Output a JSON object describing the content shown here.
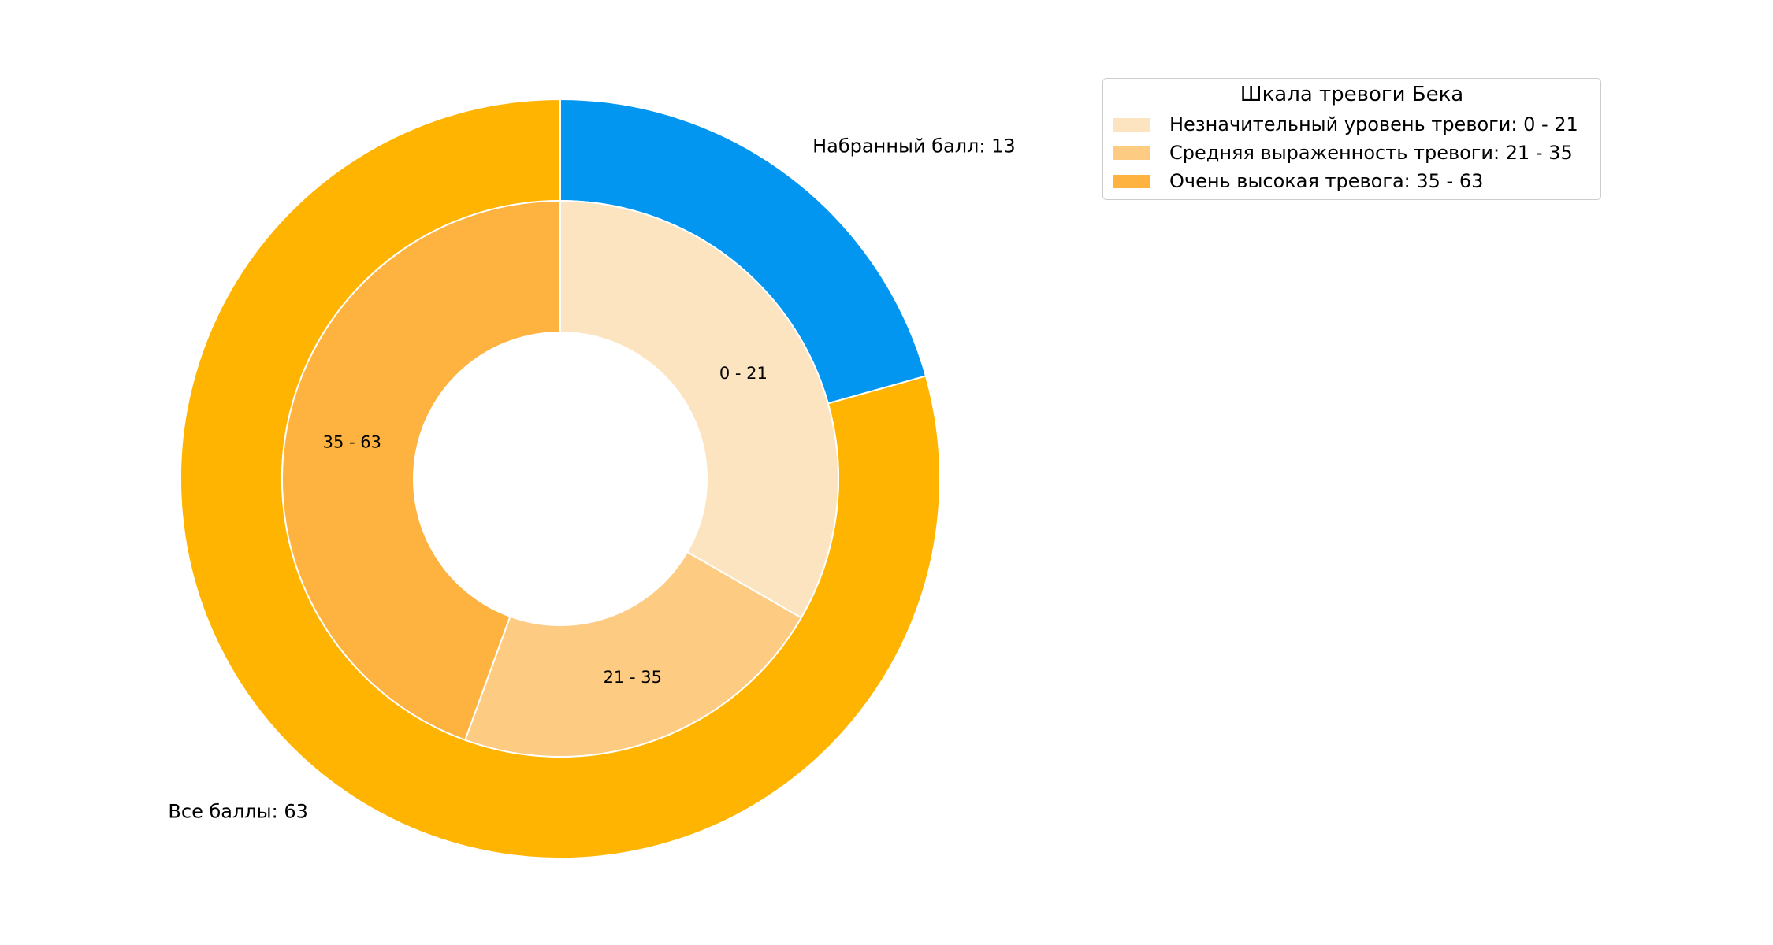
{
  "chart_data": {
    "type": "pie",
    "subtype": "nested-donut",
    "outer_ring": {
      "total": 63,
      "slices": [
        {
          "name": "Набранный балл",
          "value": 13,
          "color": "#0396f0"
        },
        {
          "name": "Все баллы",
          "value": 50,
          "color": "#feb400"
        }
      ],
      "labels": [
        "Набранный балл: 13",
        "Все баллы: 63"
      ]
    },
    "inner_ring": {
      "slices": [
        {
          "label": "0 - 21",
          "value": 21,
          "color": "#fde4c0"
        },
        {
          "label": "21 - 35",
          "value": 14,
          "color": "#fdcb82"
        },
        {
          "label": "35 - 63",
          "value": 28,
          "color": "#feb240"
        }
      ]
    },
    "start_angle_deg": 90,
    "direction": "clockwise",
    "legend": {
      "title": "Шкала тревоги Бека",
      "placement": "top-right",
      "entries": [
        {
          "label": "Незначительный уровень тревоги: 0 - 21",
          "color": "#fde4c0"
        },
        {
          "label": "Средняя выраженность тревоги: 21 - 35",
          "color": "#fdcb82"
        },
        {
          "label": "Очень высокая тревога: 35 - 63",
          "color": "#feb240"
        }
      ]
    }
  }
}
